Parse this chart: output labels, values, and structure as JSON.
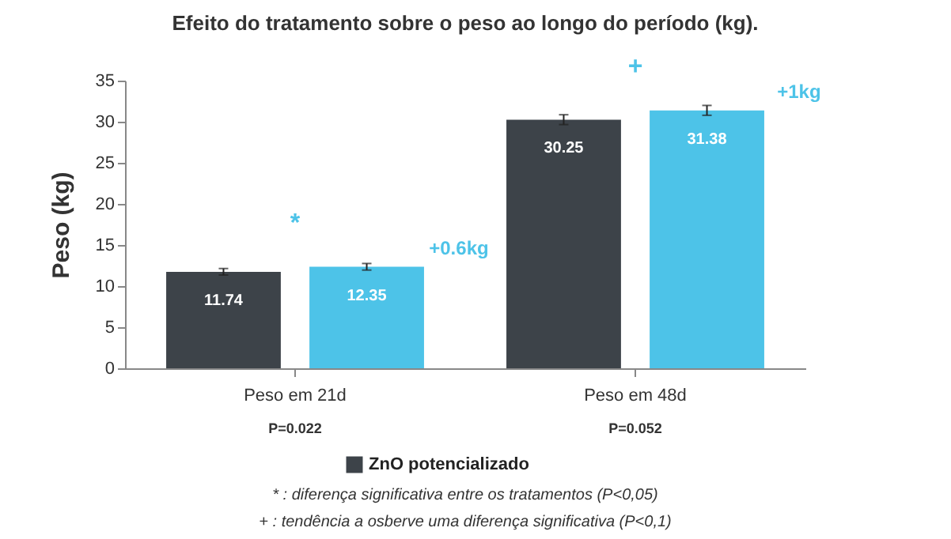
{
  "chart_data": {
    "type": "bar",
    "title": "Efeito do tratamento sobre o peso ao longo do período (kg).",
    "ylabel": "Peso (kg)",
    "categories": [
      "Peso em 21d",
      "Peso em 48d"
    ],
    "series": [
      {
        "name": "ZnO potencializado",
        "color": "#3d4349",
        "values": [
          11.74,
          30.25
        ],
        "errors": [
          0.4,
          0.6
        ]
      },
      {
        "color": "#4dc3e8",
        "values": [
          12.35,
          31.38
        ],
        "errors": [
          0.4,
          0.6
        ]
      }
    ],
    "ylim": [
      0,
      35
    ],
    "yticks": [
      0,
      5,
      10,
      15,
      20,
      25,
      30,
      35
    ],
    "grid": false,
    "legend": "bottom",
    "data_labels": true,
    "annotations": [
      "*",
      "+",
      "+0.6kg",
      "+1kg",
      "P=0.022",
      "P=0.052",
      "* : diferença significativa entre os tratamentos (P<0,05)",
      "+ : tendência a osberve uma diferença significativa (P<0,1)"
    ]
  }
}
